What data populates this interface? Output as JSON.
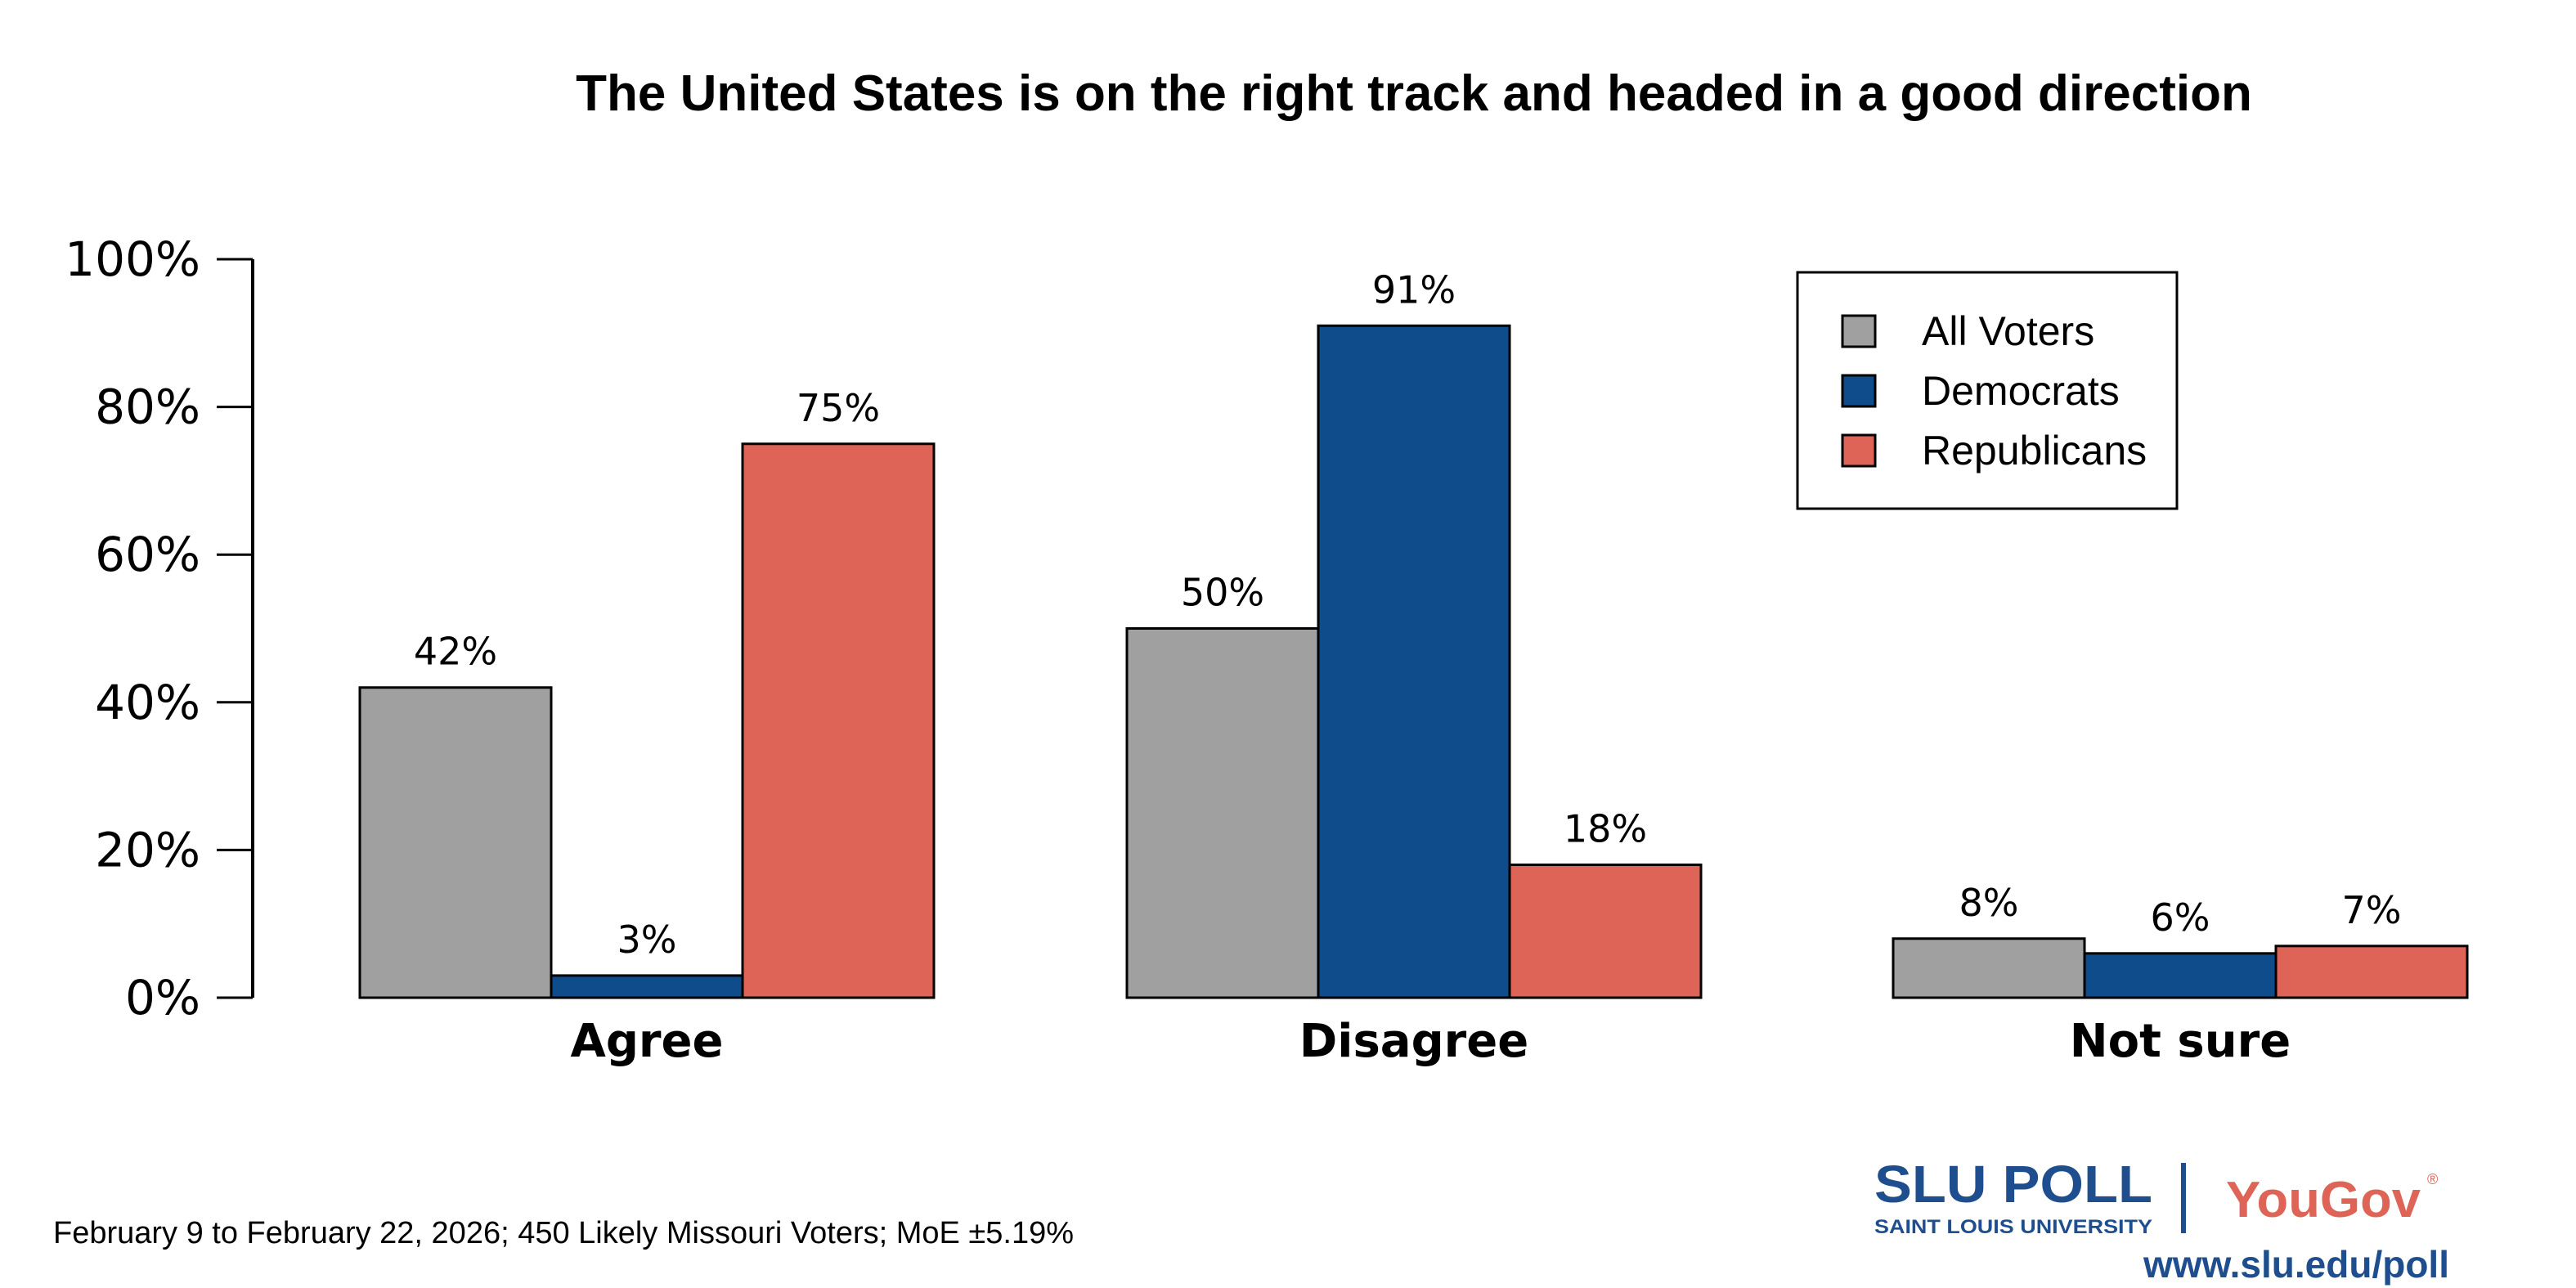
{
  "chart_data": {
    "type": "bar",
    "title": "The United States is on the right track and headed in a good direction",
    "categories": [
      "Agree",
      "Disagree",
      "Not sure"
    ],
    "series": [
      {
        "name": "All Voters",
        "values": [
          42,
          50,
          8
        ],
        "color": "#a0a0a0"
      },
      {
        "name": "Democrats",
        "values": [
          3,
          91,
          6
        ],
        "color": "#0f4c8c"
      },
      {
        "name": "Republicans",
        "values": [
          75,
          18,
          7
        ],
        "color": "#dd6456"
      }
    ],
    "data_labels": [
      [
        "42%",
        "50%",
        "8%"
      ],
      [
        "3%",
        "91%",
        "6%"
      ],
      [
        "75%",
        "18%",
        "7%"
      ]
    ],
    "yticks": [
      "0%",
      "20%",
      "40%",
      "60%",
      "80%",
      "100%"
    ],
    "ylim": [
      0,
      100
    ],
    "xlabel": "",
    "ylabel": "",
    "grid": false,
    "legend_position": "top-right"
  },
  "footer": {
    "note": "February 9 to February 22, 2026; 450 Likely Missouri Voters; MoE ±5.19%",
    "logo_slu": "SLU POLL",
    "logo_slu_sub": "SAINT LOUIS UNIVERSITY",
    "logo_yougov": "YouGov",
    "url": "www.slu.edu/poll"
  }
}
